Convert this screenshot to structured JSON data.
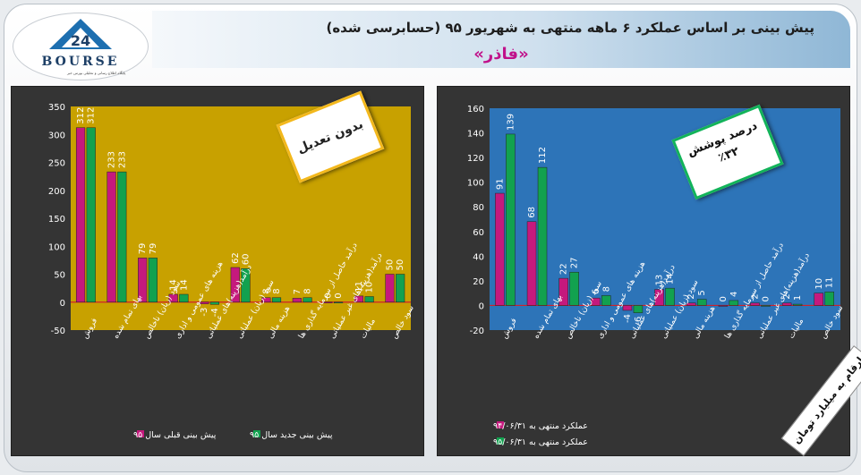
{
  "header": {
    "title": "پیش بینی بر اساس عملکرد ۶ ماهه منتهی به شهریور ۹۵ (حسابرسی شده)",
    "company": "«فاذر»"
  },
  "logo": {
    "text": "BOURSE",
    "tagline": "پایگاه اطلاع رسانی و تحلیلی بورس خبر",
    "mark": "24"
  },
  "badges": {
    "left": "بدون تعدیل",
    "right_title": "درصد پوشش",
    "right_value": "٪۳۲"
  },
  "unit_note": "ارقام به میلیارد تومان",
  "colors": {
    "magenta": "#c5197d",
    "green": "#12a14f",
    "left_plot_bg": "#c8a100",
    "right_plot_bg": "#2d74b8"
  },
  "chart_data": [
    {
      "type": "bar",
      "categories": [
        "فروش",
        "بهای تمام شده",
        "سود (زیان) ناخالص",
        "هزینه های عمومی و اداری",
        "درآمد(هزینه)های عملیاتی",
        "سود (زیان) عملیاتی",
        "هزینه مالی",
        "درآمد حاصل از سرمایه گذاری ها",
        "درآمد(هزینه)های غیر عملیاتی",
        "مالیات",
        "سود خالص"
      ],
      "series": [
        {
          "name": "پیش بینی قبلی سال ۹۵",
          "color": "#c5197d",
          "values": [
            312,
            233,
            79,
            14,
            -3,
            62,
            8,
            7,
            0,
            11,
            50
          ]
        },
        {
          "name": "پیش بینی جدید سال ۹۵",
          "color": "#12a14f",
          "values": [
            312,
            233,
            79,
            14,
            -4,
            60,
            8,
            8,
            0,
            10,
            50
          ]
        }
      ],
      "ylim": [
        -50,
        350
      ],
      "yticks": [
        -50,
        0,
        50,
        100,
        150,
        200,
        250,
        300,
        350
      ],
      "grid": false,
      "legend": "bottom"
    },
    {
      "type": "bar",
      "categories": [
        "فروش",
        "بهای تمام شده",
        "سود (زیان) ناخالص",
        "هزینه های عمومی و اداری",
        "درآمد(هزینه)های عملیاتی",
        "سود (زیان) عملیاتی",
        "هزینه مالی",
        "درآمد حاصل از سرمایه گذاری ها",
        "درآمد(هزینه)های غیر عملیاتی",
        "مالیات",
        "سود خالص"
      ],
      "series": [
        {
          "name": "عملکرد منتهی به ۹۴/۰۶/۳۱",
          "color": "#c5197d",
          "values": [
            91,
            68,
            22,
            6,
            -4,
            13,
            2,
            0,
            2,
            2,
            10
          ]
        },
        {
          "name": "عملکرد منتهی به ۹۵/۰۶/۳۱",
          "color": "#12a14f",
          "values": [
            139,
            112,
            27,
            8,
            -6,
            14,
            5,
            4,
            0,
            1,
            11
          ]
        }
      ],
      "ylim": [
        -20,
        160
      ],
      "yticks": [
        -20,
        0,
        20,
        40,
        60,
        80,
        100,
        120,
        140,
        160
      ],
      "grid": false,
      "legend": "bottom"
    }
  ]
}
